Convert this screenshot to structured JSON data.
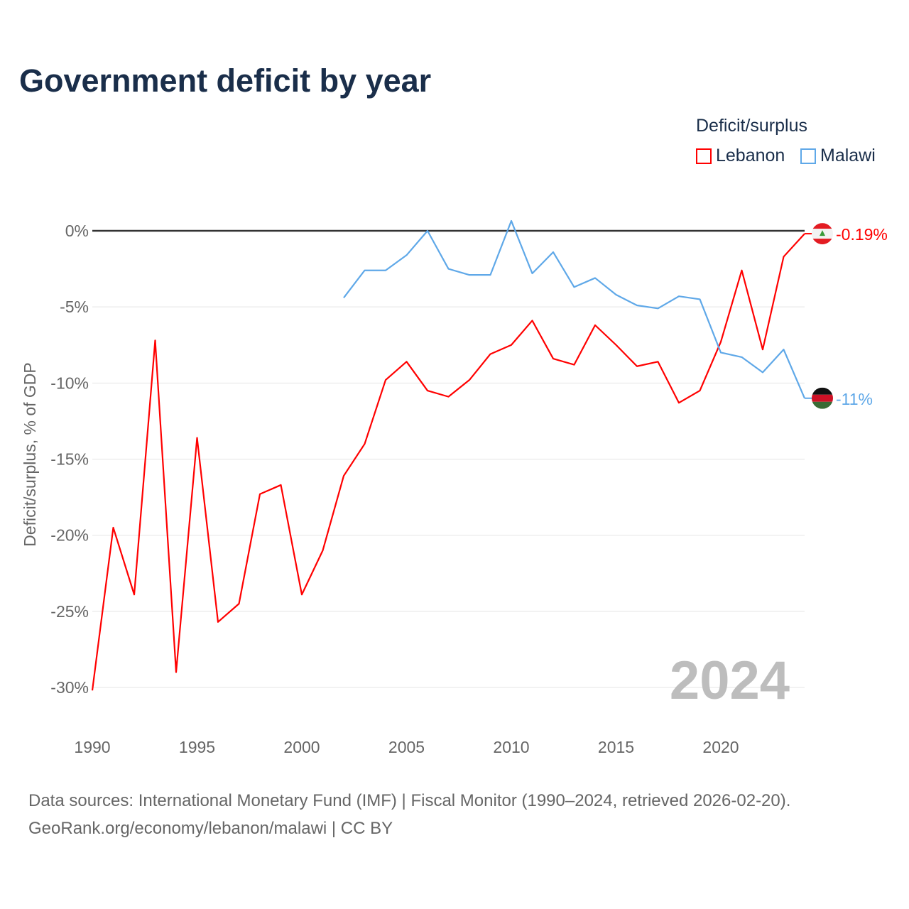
{
  "chart_data": {
    "type": "line",
    "title": "Government deficit by year",
    "ylabel": "Deficit/surplus, % of GDP",
    "xlabel": "",
    "xlim": [
      1990,
      2024
    ],
    "ylim": [
      -30,
      0
    ],
    "x_ticks": [
      1990,
      1995,
      2000,
      2005,
      2010,
      2015,
      2020
    ],
    "y_ticks": [
      0,
      -5,
      -10,
      -15,
      -20,
      -25,
      -30
    ],
    "y_tick_labels": [
      "0%",
      "-5%",
      "-10%",
      "-15%",
      "-20%",
      "-25%",
      "-30%"
    ],
    "grid": true,
    "legend_title": "Deficit/surplus",
    "legend_position": "top-right",
    "year_watermark": "2024",
    "series": [
      {
        "name": "Lebanon",
        "color": "#ff0000",
        "end_label": "-0.19%",
        "x": [
          1990,
          1991,
          1992,
          1993,
          1994,
          1995,
          1996,
          1997,
          1998,
          1999,
          2000,
          2001,
          2002,
          2003,
          2004,
          2005,
          2006,
          2007,
          2008,
          2009,
          2010,
          2011,
          2012,
          2013,
          2014,
          2015,
          2016,
          2017,
          2018,
          2019,
          2020,
          2021,
          2022,
          2023,
          2024
        ],
        "values": [
          -30.2,
          -19.5,
          -23.9,
          -7.2,
          -29.0,
          -13.6,
          -25.7,
          -24.5,
          -17.3,
          -16.7,
          -23.9,
          -21.0,
          -16.1,
          -14.0,
          -9.8,
          -8.6,
          -10.5,
          -10.9,
          -9.8,
          -8.1,
          -7.5,
          -5.9,
          -8.4,
          -8.8,
          -6.2,
          -7.5,
          -8.9,
          -8.6,
          -11.3,
          -10.5,
          -7.3,
          -2.6,
          -7.8,
          -1.7,
          -0.19
        ]
      },
      {
        "name": "Malawi",
        "color": "#5fa8e8",
        "end_label": "-11%",
        "x": [
          2002,
          2003,
          2004,
          2005,
          2006,
          2007,
          2008,
          2009,
          2010,
          2011,
          2012,
          2013,
          2014,
          2015,
          2016,
          2017,
          2018,
          2019,
          2020,
          2021,
          2022,
          2023,
          2024
        ],
        "values": [
          -4.4,
          -2.6,
          -2.6,
          -1.6,
          0.0,
          -2.5,
          -2.9,
          -2.9,
          0.65,
          -2.8,
          -1.4,
          -3.7,
          -3.1,
          -4.2,
          -4.9,
          -5.1,
          -4.3,
          -4.5,
          -8.0,
          -8.3,
          -9.3,
          -7.8,
          -11.0
        ]
      }
    ]
  },
  "source": {
    "line1": "Data sources: International Monetary Fund (IMF) | Fiscal Monitor (1990–2024, retrieved 2026-02-20).",
    "line2": "GeoRank.org/economy/lebanon/malawi | CC BY"
  }
}
